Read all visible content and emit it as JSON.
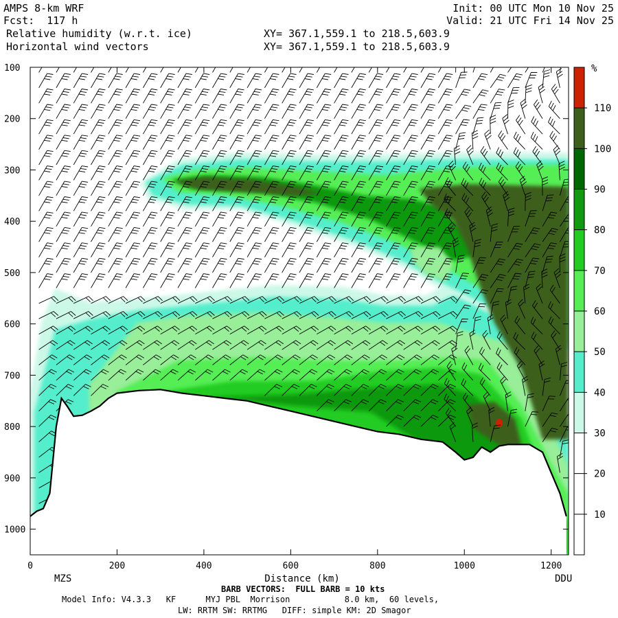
{
  "header": {
    "left_line1": "AMPS 8-km WRF",
    "left_line2": "Fcst:  117 h",
    "left_line3": "Relative humidity (w.r.t. ice)",
    "left_line4": "Horizontal wind vectors",
    "mid_line3": "XY= 367.1,559.1 to 218.5,603.9",
    "mid_line4": "XY= 367.1,559.1 to 218.5,603.9",
    "right_line1": "Init: 00 UTC Mon 10 Nov 25",
    "right_line2": "Valid: 21 UTC Fri 14 Nov 25"
  },
  "footer": {
    "barb_note": "BARB VECTORS:  FULL BARB = 10 kts",
    "model_info": "Model Info: V4.3.3   KF      MYJ PBL  Morrison           8.0 km,  60 levels,",
    "physics": "LW: RRTM SW: RRTMG   DIFF: simple KM: 2D Smagor"
  },
  "chart_data": {
    "type": "heatmap",
    "title": "Relative humidity (w.r.t. ice)",
    "xlabel": "Distance (km)",
    "ylabel": "",
    "xlim": [
      0,
      1240
    ],
    "ylim": [
      1050,
      100
    ],
    "x_ticks": [
      0,
      200,
      400,
      600,
      800,
      1000,
      1200
    ],
    "y_ticks": [
      100,
      200,
      300,
      400,
      500,
      600,
      700,
      800,
      900,
      1000
    ],
    "x_endpoint_labels": {
      "left": "MZS",
      "right": "DDU"
    },
    "colorbar": {
      "unit": "%",
      "levels": [
        10,
        20,
        30,
        40,
        50,
        60,
        70,
        80,
        90,
        100,
        110
      ],
      "colors": [
        "#ffffff",
        "#ffffff",
        "#ffffff",
        "#ccf8e8",
        "#55eecc",
        "#99ee99",
        "#55ee55",
        "#22cc22",
        "#119911",
        "#006600",
        "#3d5e1c",
        "#cc2200"
      ]
    },
    "terrain_profile": {
      "x": [
        0,
        15,
        30,
        45,
        60,
        72,
        85,
        100,
        120,
        140,
        160,
        180,
        200,
        250,
        300,
        350,
        400,
        450,
        500,
        550,
        600,
        650,
        700,
        750,
        800,
        850,
        900,
        950,
        980,
        1000,
        1020,
        1040,
        1060,
        1080,
        1100,
        1150,
        1180,
        1200,
        1220,
        1235
      ],
      "p": [
        975,
        965,
        960,
        930,
        800,
        745,
        760,
        780,
        778,
        770,
        760,
        745,
        735,
        730,
        728,
        735,
        740,
        745,
        750,
        760,
        770,
        780,
        790,
        800,
        810,
        815,
        825,
        830,
        850,
        865,
        860,
        840,
        850,
        838,
        835,
        835,
        850,
        890,
        930,
        975
      ]
    },
    "rh_regions": [
      {
        "name": "upper-moist-band",
        "rh_max": 105,
        "p_range": [
          270,
          520
        ],
        "x_range": [
          270,
          1240
        ]
      },
      {
        "name": "mid-moist-layer",
        "rh_max": 100,
        "p_range": [
          520,
          800
        ],
        "x_range": [
          0,
          1240
        ]
      },
      {
        "name": "peak-humidity-spot",
        "rh_max": 115,
        "p_center": 790,
        "x_center": 1080
      }
    ],
    "wind_barbs": {
      "full_barb_kts": 10,
      "x_spacing_km": 40
    }
  }
}
